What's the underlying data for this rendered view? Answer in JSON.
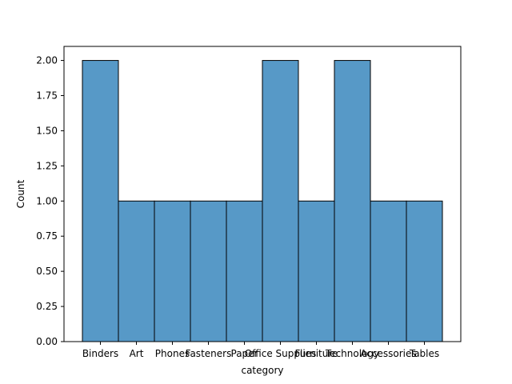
{
  "chart_data": {
    "type": "bar",
    "categories": [
      "Binders",
      "Art",
      "Phones",
      "Fasteners",
      "Paper",
      "Office Supplies",
      "Furniture",
      "Technology",
      "Accessories",
      "Tables"
    ],
    "values": [
      2,
      1,
      1,
      1,
      1,
      2,
      1,
      2,
      1,
      1
    ],
    "xlabel": "category",
    "ylabel": "Count",
    "ylim": [
      0,
      2.1
    ],
    "yticks": [
      0.0,
      0.25,
      0.5,
      0.75,
      1.0,
      1.25,
      1.5,
      1.75,
      2.0
    ],
    "ytick_labels": [
      "0.00",
      "0.25",
      "0.50",
      "0.75",
      "1.00",
      "1.25",
      "1.50",
      "1.75",
      "2.00"
    ],
    "bar_color": "#5799c7",
    "edge_color": "#000000",
    "grid": false
  }
}
